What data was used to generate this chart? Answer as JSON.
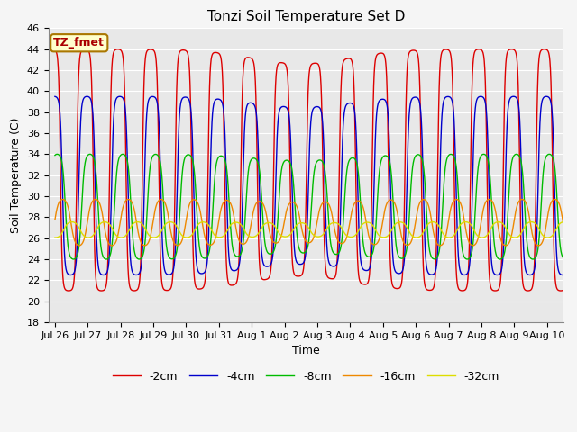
{
  "title": "Tonzi Soil Temperature Set D",
  "xlabel": "Time",
  "ylabel": "Soil Temperature (C)",
  "ylim": [
    18,
    46
  ],
  "xlim_start": -0.2,
  "xlim_end": 15.5,
  "xtick_labels": [
    "Jul 26",
    "Jul 27",
    "Jul 28",
    "Jul 29",
    "Jul 30",
    "Jul 31",
    "Aug 1",
    "Aug 2",
    "Aug 3",
    "Aug 4",
    "Aug 5",
    "Aug 6",
    "Aug 7",
    "Aug 8",
    "Aug 9",
    "Aug 10"
  ],
  "xtick_positions": [
    0,
    1,
    2,
    3,
    4,
    5,
    6,
    7,
    8,
    9,
    10,
    11,
    12,
    13,
    14,
    15
  ],
  "series": [
    {
      "label": "-2cm",
      "color": "#dd0000",
      "amplitude": 11.5,
      "mean": 32.5,
      "phase_shift": 0.0,
      "sharpness": 3.0
    },
    {
      "label": "-4cm",
      "color": "#0000cc",
      "amplitude": 8.5,
      "mean": 31.0,
      "phase_shift": 0.06,
      "sharpness": 2.5
    },
    {
      "label": "-8cm",
      "color": "#00bb00",
      "amplitude": 5.0,
      "mean": 29.0,
      "phase_shift": 0.15,
      "sharpness": 1.8
    },
    {
      "label": "-16cm",
      "color": "#ee8800",
      "amplitude": 2.2,
      "mean": 27.5,
      "phase_shift": 0.32,
      "sharpness": 1.2
    },
    {
      "label": "-32cm",
      "color": "#dddd00",
      "amplitude": 0.75,
      "mean": 26.8,
      "phase_shift": 0.6,
      "sharpness": 1.0
    }
  ],
  "annotation_label": "TZ_fmet",
  "fig_bg": "#f5f5f5",
  "plot_bg": "#e8e8e8",
  "title_fontsize": 11,
  "axis_fontsize": 9,
  "tick_fontsize": 8,
  "legend_fontsize": 9
}
